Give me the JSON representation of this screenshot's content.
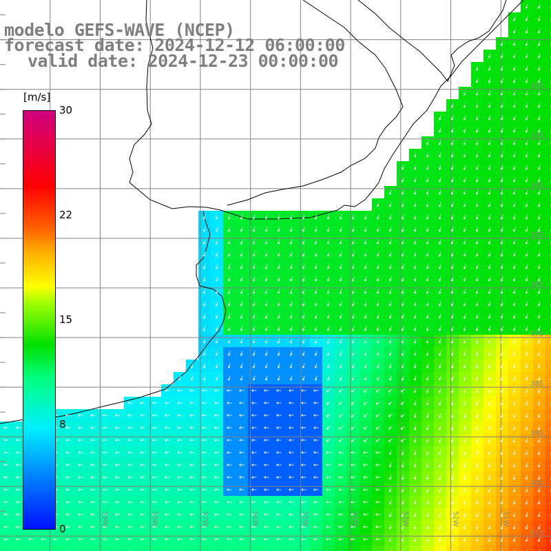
{
  "header": {
    "line1": "modelo GEFS-WAVE (NCEP)",
    "line2": "forecast date: 2024-12-12 06:00:00",
    "line3": "valid date: 2024-12-23 00:00:00"
  },
  "colorbar": {
    "unit": "[m/s]",
    "min": 0,
    "max": 30,
    "ticks": [
      "30",
      "22",
      "15",
      "8",
      "0"
    ],
    "tick_values": [
      30,
      22,
      15,
      8,
      0
    ]
  },
  "map": {
    "lat_labels": [
      "32S",
      "33S",
      "34S",
      "35S",
      "36S",
      "37S",
      "38S",
      "39S",
      "40S",
      "41S"
    ],
    "lat_values": [
      -32,
      -33,
      -34,
      -35,
      -36,
      -37,
      -38,
      -39,
      -40,
      -41
    ],
    "lon_labels": [
      "59W",
      "58W",
      "57W",
      "56W",
      "55W",
      "54W",
      "53W",
      "52W",
      "51W"
    ],
    "lon_values": [
      -59,
      -58,
      -57,
      -56,
      -55,
      -54,
      -53,
      -52,
      -51
    ],
    "lon_range": [
      -61,
      -50
    ],
    "lat_range": [
      -41.3,
      -30.2
    ],
    "grid_color": "#808080",
    "coast_color": "#000000",
    "arrow_color": "#ffffff"
  }
}
